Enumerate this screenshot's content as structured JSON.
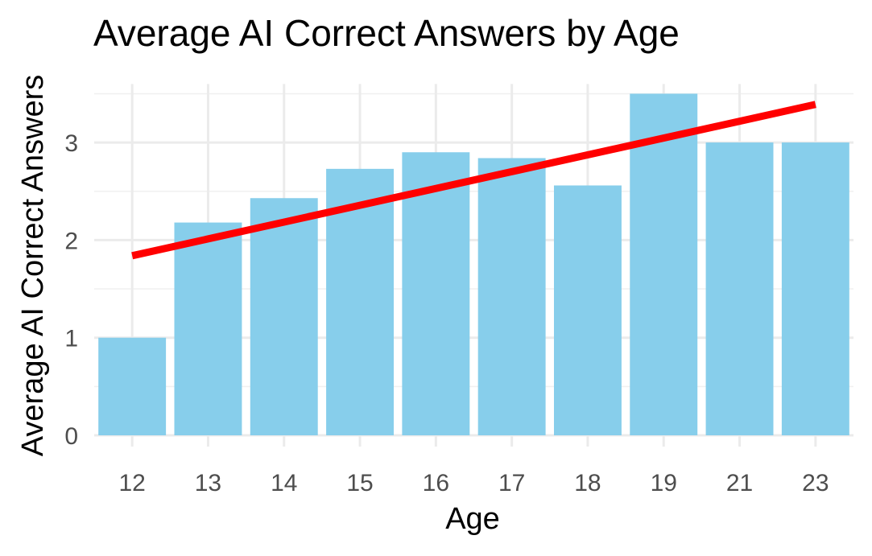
{
  "chart_data": {
    "type": "bar",
    "title": "Average AI Correct Answers by Age",
    "xlabel": "Age",
    "ylabel": "Average AI Correct Answers",
    "categories": [
      "12",
      "13",
      "14",
      "15",
      "16",
      "17",
      "18",
      "19",
      "21",
      "23"
    ],
    "values": [
      1.0,
      2.18,
      2.43,
      2.73,
      2.9,
      2.84,
      2.56,
      3.5,
      3.0,
      3.0
    ],
    "y_ticks": [
      "0",
      "1",
      "2",
      "3"
    ],
    "ylim": [
      0,
      3.6
    ],
    "trend_line": {
      "from": [
        12,
        1.84
      ],
      "to": [
        23,
        3.39
      ]
    },
    "bar_color": "#87ceeb",
    "trend_color": "#ff0000",
    "grid": true
  }
}
